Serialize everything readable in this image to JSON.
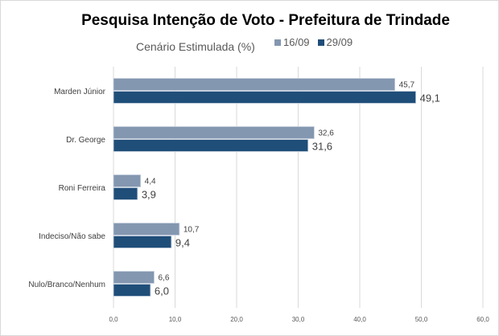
{
  "chart_data": {
    "type": "bar",
    "orientation": "horizontal",
    "title": "Pesquisa Intenção de Voto - Prefeitura de Trindade",
    "subtitle": "Cenário Estimulada (%)",
    "categories": [
      "Marden Júnior",
      "Dr. George",
      "Roni Ferreira",
      "Indeciso/Não sabe",
      "Nulo/Branco/Nenhum"
    ],
    "series": [
      {
        "name": "16/09",
        "color": "#8497b0",
        "values": [
          45.7,
          32.6,
          4.4,
          10.7,
          6.6
        ],
        "labels": [
          "45,7",
          "32,6",
          "4,4",
          "10,7",
          "6,6"
        ]
      },
      {
        "name": "29/09",
        "color": "#1f4e79",
        "values": [
          49.1,
          31.6,
          3.9,
          9.4,
          6.0
        ],
        "labels": [
          "49,1",
          "31,6",
          "3,9",
          "9,4",
          "6,0"
        ]
      }
    ],
    "xlim": [
      0,
      60
    ],
    "xticks": [
      0,
      10,
      20,
      30,
      40,
      50,
      60
    ],
    "xtick_labels": [
      "0,0",
      "10,0",
      "20,0",
      "30,0",
      "40,0",
      "50,0",
      "60,0"
    ],
    "grid": true,
    "legend_position": "top"
  }
}
